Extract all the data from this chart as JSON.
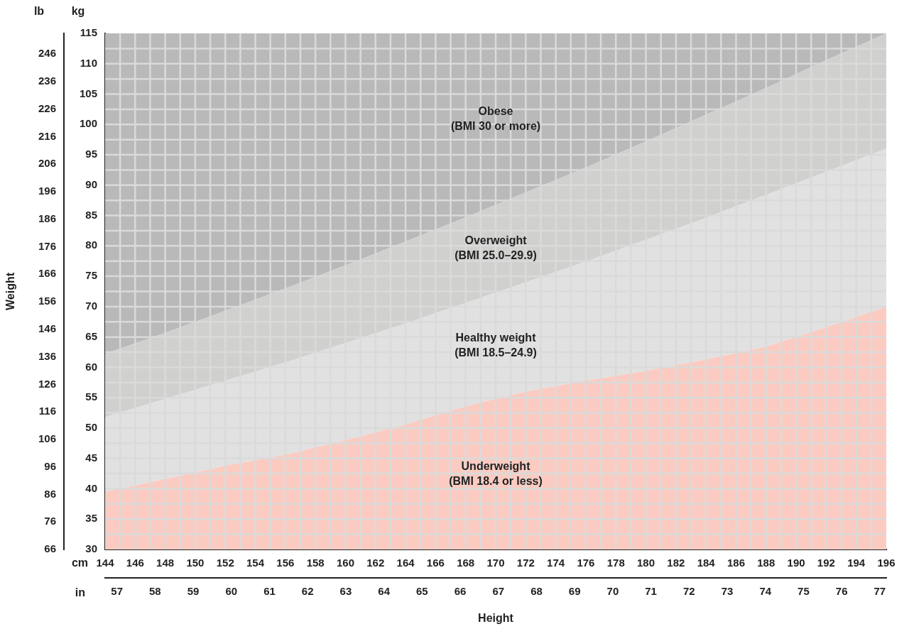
{
  "chart_data": {
    "type": "area",
    "x": [
      144,
      148,
      152,
      156,
      160,
      164,
      168,
      172,
      176,
      180,
      184,
      188,
      192,
      196
    ],
    "series": [
      {
        "name": "Underweight\n(BMI 18.4 or less)",
        "color": "#fbcbc1",
        "values": [
          39.5,
          41.6,
          43.8,
          45.6,
          48.0,
          50.6,
          53.6,
          56.0,
          57.8,
          59.4,
          61.3,
          63.4,
          66.6,
          70.0
        ]
      },
      {
        "name": "Healthy weight\n(BMI 18.5–24.9)",
        "color": "#e1e1e1",
        "values": [
          51.8,
          54.8,
          57.8,
          60.8,
          64.0,
          67.2,
          70.6,
          74.0,
          77.4,
          81.0,
          84.6,
          88.4,
          92.2,
          96.0
        ]
      },
      {
        "name": "Overweight\n(BMI 25.0–29.9)",
        "color": "#d0d0cf",
        "values": [
          62.2,
          65.7,
          69.3,
          73.0,
          76.8,
          80.7,
          84.7,
          88.8,
          92.9,
          97.2,
          101.6,
          106.0,
          110.6,
          115.0
        ]
      },
      {
        "name": "Obese\n(BMI 30 or more)",
        "color": "#b9b9b9",
        "values": [
          115,
          115,
          115,
          115,
          115,
          115,
          115,
          115,
          115,
          115,
          115,
          115,
          115,
          115
        ]
      }
    ],
    "xlabel": "cm",
    "x2label": "in",
    "ylabel": "kg",
    "y2label": "lb",
    "xlim": [
      144,
      196
    ],
    "xticks": [
      144,
      146,
      148,
      150,
      152,
      154,
      156,
      158,
      160,
      162,
      164,
      166,
      168,
      170,
      172,
      174,
      176,
      178,
      180,
      182,
      184,
      186,
      188,
      190,
      192,
      194,
      196
    ],
    "x2lim": [
      56.69,
      77.17
    ],
    "x2ticks": [
      57,
      58,
      59,
      60,
      61,
      62,
      63,
      64,
      65,
      66,
      67,
      68,
      69,
      70,
      71,
      72,
      73,
      74,
      75,
      76,
      77
    ],
    "ylim": [
      30,
      115
    ],
    "yticks": [
      30,
      35,
      40,
      45,
      50,
      55,
      60,
      65,
      70,
      75,
      80,
      85,
      90,
      95,
      100,
      105,
      110,
      115
    ],
    "y2lim": [
      66,
      253.5
    ],
    "y2ticks": [
      66,
      76,
      86,
      96,
      106,
      116,
      126,
      136,
      146,
      156,
      166,
      176,
      186,
      196,
      206,
      216,
      226,
      236,
      246
    ],
    "grid": true,
    "annotations": [
      "Weight",
      "Height"
    ]
  }
}
